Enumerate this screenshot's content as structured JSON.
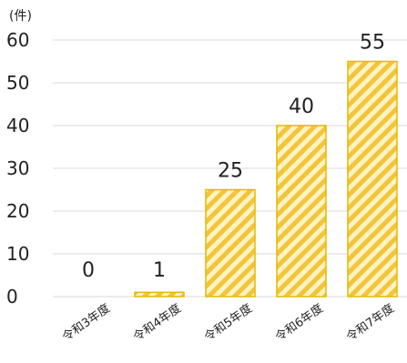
{
  "chart_data": {
    "type": "bar",
    "unit_label": "(件)",
    "categories": [
      "令和3年度",
      "令和4年度",
      "令和5年度",
      "令和6年度",
      "令和7年度"
    ],
    "values": [
      0,
      1,
      25,
      40,
      55
    ],
    "data_labels": [
      "0",
      "1",
      "25",
      "40",
      "55"
    ],
    "y_ticks": [
      "0",
      "10",
      "20",
      "30",
      "40",
      "50",
      "60"
    ],
    "ylim": [
      0,
      60
    ],
    "grid": true,
    "legend": "none",
    "colors": {
      "bar_fill": "#fff3c4",
      "bar_stripe": "#f2c53a",
      "bar_border": "#e6b800",
      "grid": "#d9d9d9",
      "text": "#222222"
    }
  }
}
